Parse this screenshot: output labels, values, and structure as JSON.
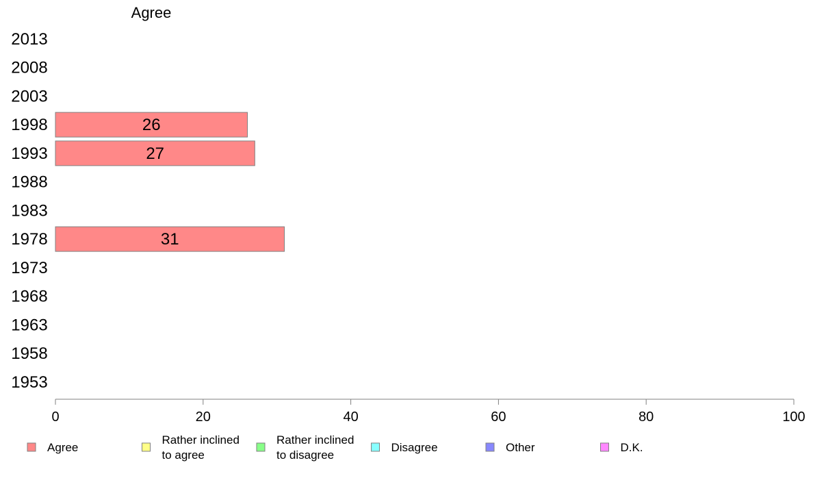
{
  "chart_data": {
    "type": "bar",
    "orientation": "horizontal",
    "series_header": "Agree",
    "categories": [
      "2013",
      "2008",
      "2003",
      "1998",
      "1993",
      "1988",
      "1983",
      "1978",
      "1973",
      "1968",
      "1963",
      "1958",
      "1953"
    ],
    "series": [
      {
        "name": "Agree",
        "color": "#ff8888",
        "values": [
          null,
          null,
          null,
          26,
          27,
          null,
          null,
          31,
          null,
          null,
          null,
          null,
          null
        ]
      }
    ],
    "xlim": [
      0,
      100
    ],
    "xticks": [
      0,
      20,
      40,
      60,
      80,
      100
    ],
    "grid": false,
    "legend_position": "bottom",
    "legend": [
      {
        "lines": [
          "Agree"
        ],
        "color": "#ff8888"
      },
      {
        "lines": [
          "Rather inclined",
          "to agree"
        ],
        "color": "#ffff88"
      },
      {
        "lines": [
          "Rather inclined",
          "to disagree"
        ],
        "color": "#88ff88"
      },
      {
        "lines": [
          "Disagree"
        ],
        "color": "#88ffff"
      },
      {
        "lines": [
          "Other"
        ],
        "color": "#8888ff"
      },
      {
        "lines": [
          "D.K."
        ],
        "color": "#ff88ff"
      }
    ]
  }
}
